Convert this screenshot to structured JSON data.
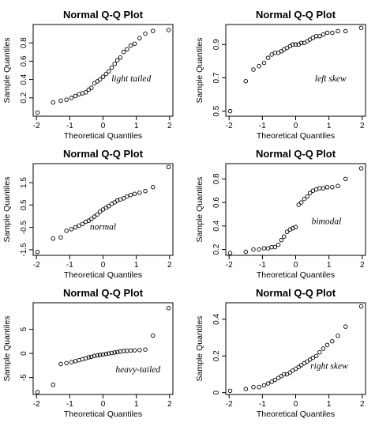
{
  "chart_data": [
    {
      "type": "scatter",
      "title": "Normal Q-Q Plot",
      "xlabel": "Theoretical Quantiles",
      "ylabel": "Sample Quantiles",
      "annotation": "light tailed",
      "xlim": [
        -2.1,
        2.1
      ],
      "ylim": [
        0.0,
        1.0
      ],
      "xticks": [
        -2,
        -1,
        0,
        1,
        2
      ],
      "yticks": [
        0.2,
        0.4,
        0.6,
        0.8
      ],
      "series": [
        {
          "x": [
            -1.97,
            -1.5,
            -1.27,
            -1.1,
            -0.95,
            -0.83,
            -0.72,
            -0.62,
            -0.52,
            -0.43,
            -0.35,
            -0.26,
            -0.17,
            -0.09,
            0.0,
            0.09,
            0.17,
            0.26,
            0.35,
            0.43,
            0.52,
            0.62,
            0.72,
            0.83,
            0.95,
            1.1,
            1.27,
            1.5,
            1.97
          ],
          "y": [
            0.04,
            0.15,
            0.17,
            0.18,
            0.2,
            0.22,
            0.24,
            0.25,
            0.26,
            0.29,
            0.31,
            0.36,
            0.38,
            0.4,
            0.43,
            0.46,
            0.49,
            0.53,
            0.57,
            0.61,
            0.64,
            0.7,
            0.73,
            0.77,
            0.79,
            0.85,
            0.9,
            0.93,
            0.94
          ]
        }
      ]
    },
    {
      "type": "scatter",
      "title": "Normal Q-Q Plot",
      "xlabel": "Theoretical Quantiles",
      "ylabel": "Sample Quantiles",
      "annotation": "left skew",
      "xlim": [
        -2.1,
        2.1
      ],
      "ylim": [
        0.47,
        1.02
      ],
      "xticks": [
        -2,
        -1,
        0,
        1,
        2
      ],
      "yticks": [
        0.5,
        0.7,
        0.9
      ],
      "series": [
        {
          "x": [
            -1.97,
            -1.5,
            -1.27,
            -1.1,
            -0.95,
            -0.83,
            -0.72,
            -0.62,
            -0.52,
            -0.43,
            -0.35,
            -0.26,
            -0.17,
            -0.09,
            0.0,
            0.09,
            0.17,
            0.26,
            0.35,
            0.43,
            0.52,
            0.62,
            0.72,
            0.83,
            0.95,
            1.1,
            1.27,
            1.5,
            1.97
          ],
          "y": [
            0.5,
            0.68,
            0.75,
            0.77,
            0.79,
            0.82,
            0.84,
            0.85,
            0.85,
            0.86,
            0.87,
            0.88,
            0.89,
            0.9,
            0.9,
            0.9,
            0.91,
            0.91,
            0.92,
            0.93,
            0.94,
            0.95,
            0.95,
            0.96,
            0.97,
            0.97,
            0.98,
            0.98,
            1.0
          ]
        }
      ]
    },
    {
      "type": "scatter",
      "title": "Normal Q-Q Plot",
      "xlabel": "Theoretical Quantiles",
      "ylabel": "Sample Quantiles",
      "annotation": "normal",
      "xlim": [
        -2.1,
        2.1
      ],
      "ylim": [
        -1.75,
        2.35
      ],
      "xticks": [
        -2,
        -1,
        0,
        1,
        2
      ],
      "yticks": [
        -1.5,
        -0.5,
        0.5,
        1.5
      ],
      "series": [
        {
          "x": [
            -1.97,
            -1.5,
            -1.27,
            -1.1,
            -0.95,
            -0.83,
            -0.72,
            -0.62,
            -0.52,
            -0.43,
            -0.35,
            -0.26,
            -0.17,
            -0.09,
            0.0,
            0.09,
            0.17,
            0.26,
            0.35,
            0.43,
            0.52,
            0.62,
            0.72,
            0.83,
            0.95,
            1.1,
            1.27,
            1.5,
            1.97
          ],
          "y": [
            -1.6,
            -1.0,
            -0.95,
            -0.65,
            -0.58,
            -0.5,
            -0.42,
            -0.35,
            -0.25,
            -0.2,
            -0.12,
            -0.02,
            0.08,
            0.2,
            0.3,
            0.38,
            0.45,
            0.55,
            0.62,
            0.7,
            0.75,
            0.8,
            0.88,
            0.95,
            1.0,
            1.05,
            1.12,
            1.3,
            2.2
          ]
        }
      ]
    },
    {
      "type": "scatter",
      "title": "Normal Q-Q Plot",
      "xlabel": "Theoretical Quantiles",
      "ylabel": "Sample Quantiles",
      "annotation": "bimodal",
      "xlim": [
        -2.1,
        2.1
      ],
      "ylim": [
        0.15,
        0.93
      ],
      "xticks": [
        -2,
        -1,
        0,
        1,
        2
      ],
      "yticks": [
        0.2,
        0.4,
        0.6,
        0.8
      ],
      "series": [
        {
          "x": [
            -1.97,
            -1.5,
            -1.27,
            -1.1,
            -0.95,
            -0.83,
            -0.72,
            -0.62,
            -0.52,
            -0.43,
            -0.35,
            -0.26,
            -0.17,
            -0.09,
            0.0,
            0.09,
            0.17,
            0.26,
            0.35,
            0.43,
            0.52,
            0.62,
            0.72,
            0.83,
            0.95,
            1.1,
            1.27,
            1.5,
            1.97
          ],
          "y": [
            0.17,
            0.18,
            0.2,
            0.2,
            0.21,
            0.21,
            0.22,
            0.22,
            0.24,
            0.28,
            0.31,
            0.35,
            0.37,
            0.38,
            0.39,
            0.58,
            0.6,
            0.63,
            0.65,
            0.68,
            0.7,
            0.71,
            0.72,
            0.72,
            0.73,
            0.73,
            0.74,
            0.8,
            0.89
          ]
        }
      ]
    },
    {
      "type": "scatter",
      "title": "Normal Q-Q Plot",
      "xlabel": "Theoretical Quantiles",
      "ylabel": "Sample Quantiles",
      "annotation": "heavy-tailed",
      "xlim": [
        -2.1,
        2.1
      ],
      "ylim": [
        -8.5,
        10.5
      ],
      "xticks": [
        -2,
        -1,
        0,
        1,
        2
      ],
      "yticks": [
        -5,
        0,
        5
      ],
      "series": [
        {
          "x": [
            -1.97,
            -1.5,
            -1.27,
            -1.1,
            -0.95,
            -0.83,
            -0.72,
            -0.62,
            -0.52,
            -0.43,
            -0.35,
            -0.26,
            -0.17,
            -0.09,
            0.0,
            0.09,
            0.17,
            0.26,
            0.35,
            0.43,
            0.52,
            0.62,
            0.72,
            0.83,
            0.95,
            1.1,
            1.27,
            1.5,
            1.97
          ],
          "y": [
            -8.0,
            -6.5,
            -2.2,
            -2.0,
            -1.8,
            -1.6,
            -1.4,
            -1.2,
            -1.0,
            -0.8,
            -0.7,
            -0.5,
            -0.4,
            -0.3,
            -0.2,
            -0.1,
            0.0,
            0.1,
            0.2,
            0.3,
            0.4,
            0.5,
            0.55,
            0.6,
            0.65,
            0.7,
            0.8,
            3.7,
            9.4
          ]
        }
      ]
    },
    {
      "type": "scatter",
      "title": "Normal Q-Q Plot",
      "xlabel": "Theoretical Quantiles",
      "ylabel": "Sample Quantiles",
      "annotation": "right skew",
      "xlim": [
        -2.1,
        2.1
      ],
      "ylim": [
        -0.01,
        0.49
      ],
      "xticks": [
        -2,
        -1,
        0,
        1,
        2
      ],
      "yticks": [
        0.0,
        0.2,
        0.4
      ],
      "series": [
        {
          "x": [
            -1.97,
            -1.5,
            -1.27,
            -1.1,
            -0.95,
            -0.83,
            -0.72,
            -0.62,
            -0.52,
            -0.43,
            -0.35,
            -0.26,
            -0.17,
            -0.09,
            0.0,
            0.09,
            0.17,
            0.26,
            0.35,
            0.43,
            0.52,
            0.62,
            0.72,
            0.83,
            0.95,
            1.1,
            1.27,
            1.5,
            1.97
          ],
          "y": [
            0.01,
            0.02,
            0.03,
            0.03,
            0.04,
            0.05,
            0.06,
            0.07,
            0.08,
            0.09,
            0.1,
            0.1,
            0.11,
            0.12,
            0.13,
            0.14,
            0.15,
            0.16,
            0.17,
            0.18,
            0.19,
            0.2,
            0.22,
            0.24,
            0.26,
            0.28,
            0.31,
            0.36,
            0.47
          ]
        }
      ]
    }
  ]
}
